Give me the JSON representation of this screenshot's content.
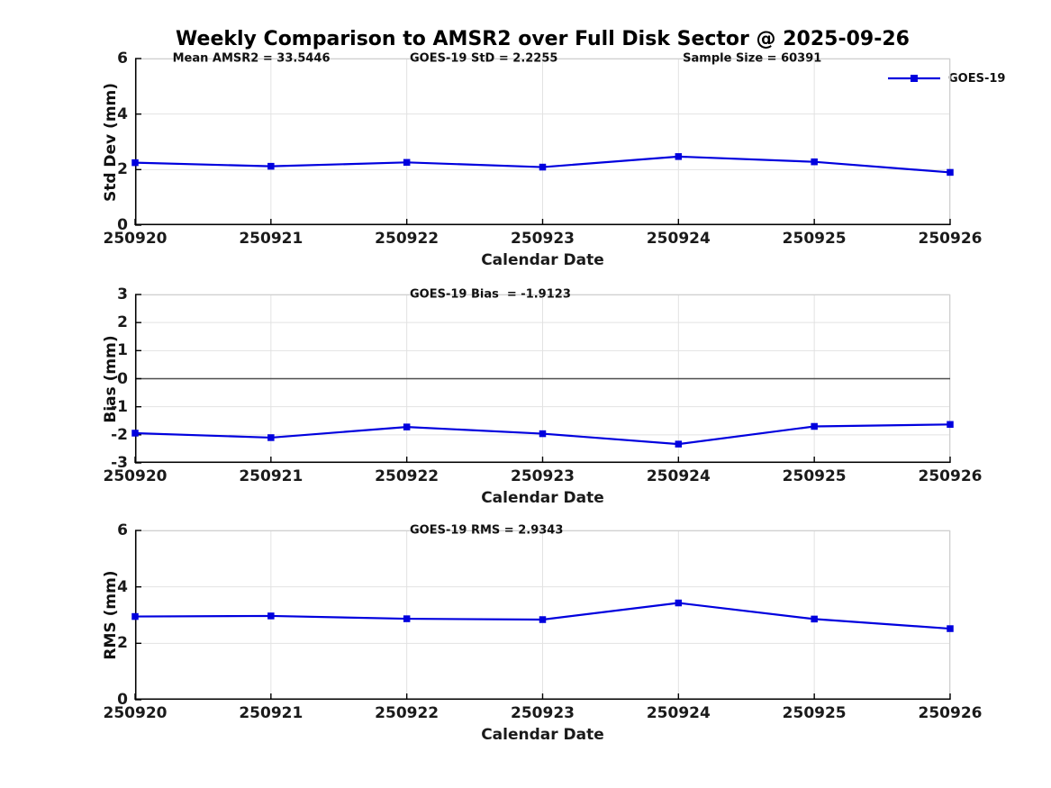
{
  "title": "Weekly Comparison to AMSR2 over Full Disk Sector @ 2025-09-26",
  "legend": {
    "label": "GOES-19",
    "color": "#0000DE",
    "marker": "square"
  },
  "chart_data": [
    {
      "type": "line",
      "panel": "std_dev",
      "annotations": [
        "Mean AMSR2 = 33.5446",
        "GOES-19 StD = 2.2255",
        "Sample Size = 60391"
      ],
      "x": [
        "250920",
        "250921",
        "250922",
        "250923",
        "250924",
        "250925",
        "250926"
      ],
      "xlabel": "Calendar Date",
      "ylabel": "Std Dev (mm)",
      "ylim": [
        0,
        6
      ],
      "yticks": [
        0,
        2,
        4,
        6
      ],
      "grid": true,
      "legend_position": "top-right",
      "series": [
        {
          "name": "GOES-19",
          "color": "#0000DE",
          "marker": "square",
          "values": [
            2.25,
            2.12,
            2.26,
            2.09,
            2.47,
            2.28,
            1.9
          ]
        }
      ]
    },
    {
      "type": "line",
      "panel": "bias",
      "annotations": [
        "GOES-19 Bias  = -1.9123"
      ],
      "x": [
        "250920",
        "250921",
        "250922",
        "250923",
        "250924",
        "250925",
        "250926"
      ],
      "xlabel": "Calendar Date",
      "ylabel": "Bias (mm)",
      "ylim": [
        -3,
        3
      ],
      "yticks": [
        -3,
        -2,
        -1,
        0,
        1,
        2,
        3
      ],
      "grid": true,
      "zero_line": true,
      "series": [
        {
          "name": "GOES-19",
          "color": "#0000DE",
          "marker": "square",
          "values": [
            -1.94,
            -2.1,
            -1.72,
            -1.96,
            -2.33,
            -1.7,
            -1.63
          ]
        }
      ]
    },
    {
      "type": "line",
      "panel": "rms",
      "annotations": [
        "GOES-19 RMS = 2.9343"
      ],
      "x": [
        "250920",
        "250921",
        "250922",
        "250923",
        "250924",
        "250925",
        "250926"
      ],
      "xlabel": "Calendar Date",
      "ylabel": "RMS (mm)",
      "ylim": [
        0,
        6
      ],
      "yticks": [
        0,
        2,
        4,
        6
      ],
      "grid": true,
      "series": [
        {
          "name": "GOES-19",
          "color": "#0000DE",
          "marker": "square",
          "values": [
            2.95,
            2.97,
            2.87,
            2.84,
            3.43,
            2.86,
            2.52
          ]
        }
      ]
    }
  ]
}
